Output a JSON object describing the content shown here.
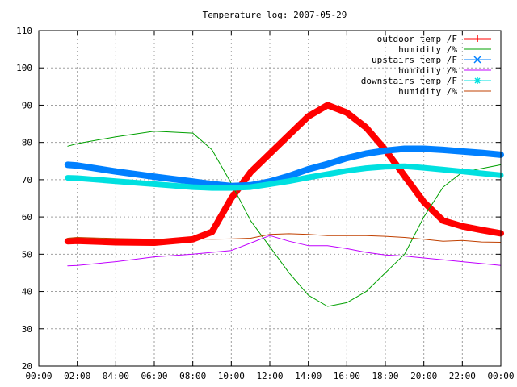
{
  "chart_data": {
    "type": "line",
    "title": "Temperature log: 2007-05-29",
    "xlabel": "",
    "ylabel": "",
    "xlim": [
      "00:00",
      "24:00"
    ],
    "ylim": [
      20,
      110
    ],
    "grid": true,
    "legend_position": "top-right",
    "x_ticks": [
      "00:00",
      "02:00",
      "04:00",
      "06:00",
      "08:00",
      "10:00",
      "12:00",
      "14:00",
      "16:00",
      "18:00",
      "20:00",
      "22:00",
      "00:00"
    ],
    "y_ticks": [
      "20",
      "30",
      "40",
      "50",
      "60",
      "70",
      "80",
      "90",
      "100",
      "110"
    ],
    "x_hours": [
      1.5,
      2,
      4,
      6,
      8,
      9,
      10,
      11,
      12,
      13,
      14,
      15,
      16,
      17,
      18,
      19,
      20,
      21,
      22,
      23,
      24
    ],
    "series": [
      {
        "name": "outdoor temp /F",
        "color": "#ff0000",
        "marker": "+",
        "values": [
          53.5,
          53.6,
          53.2,
          53.1,
          54,
          56,
          65,
          72,
          77,
          82,
          87,
          90,
          88,
          84,
          78,
          71,
          64,
          59,
          57.5,
          56.5,
          55.6
        ]
      },
      {
        "name": "humidity /%",
        "color": "#00a000",
        "marker": "",
        "values": [
          79,
          79.7,
          81.5,
          83,
          82.5,
          78,
          69,
          59,
          52,
          45,
          39,
          36,
          37,
          40,
          45,
          50,
          60,
          68,
          72,
          73,
          74
        ]
      },
      {
        "name": "upstairs temp /F",
        "color": "#0080ff",
        "marker": "x",
        "values": [
          74,
          73.8,
          72.2,
          70.8,
          69.5,
          68.8,
          68.3,
          68.5,
          69.5,
          71,
          72.8,
          74.2,
          75.8,
          77,
          77.8,
          78.3,
          78.3,
          78,
          77.6,
          77.2,
          76.7
        ]
      },
      {
        "name": "humidity /%",
        "color": "#c000ff",
        "marker": "",
        "values": [
          46.9,
          47,
          48,
          49.3,
          50,
          50.5,
          51,
          53,
          55,
          53.5,
          52.3,
          52.3,
          51.5,
          50.5,
          49.8,
          49.5,
          49,
          48.5,
          48,
          47.5,
          47
        ]
      },
      {
        "name": "downstairs temp /F",
        "color": "#00e0e0",
        "marker": "*",
        "values": [
          70.5,
          70.4,
          69.6,
          68.8,
          68,
          67.8,
          67.8,
          68,
          68.8,
          69.6,
          70.6,
          71.5,
          72.4,
          73.1,
          73.5,
          73.6,
          73.2,
          72.7,
          72.2,
          71.7,
          71.2
        ]
      },
      {
        "name": "humidity /%",
        "color": "#c04000",
        "marker": "",
        "values": [
          54.3,
          54.5,
          54.2,
          54,
          54.1,
          54,
          54.1,
          54.3,
          55.3,
          55.5,
          55.3,
          55,
          55,
          55,
          54.8,
          54.5,
          54,
          53.5,
          53.7,
          53.3,
          53.2
        ]
      }
    ]
  }
}
